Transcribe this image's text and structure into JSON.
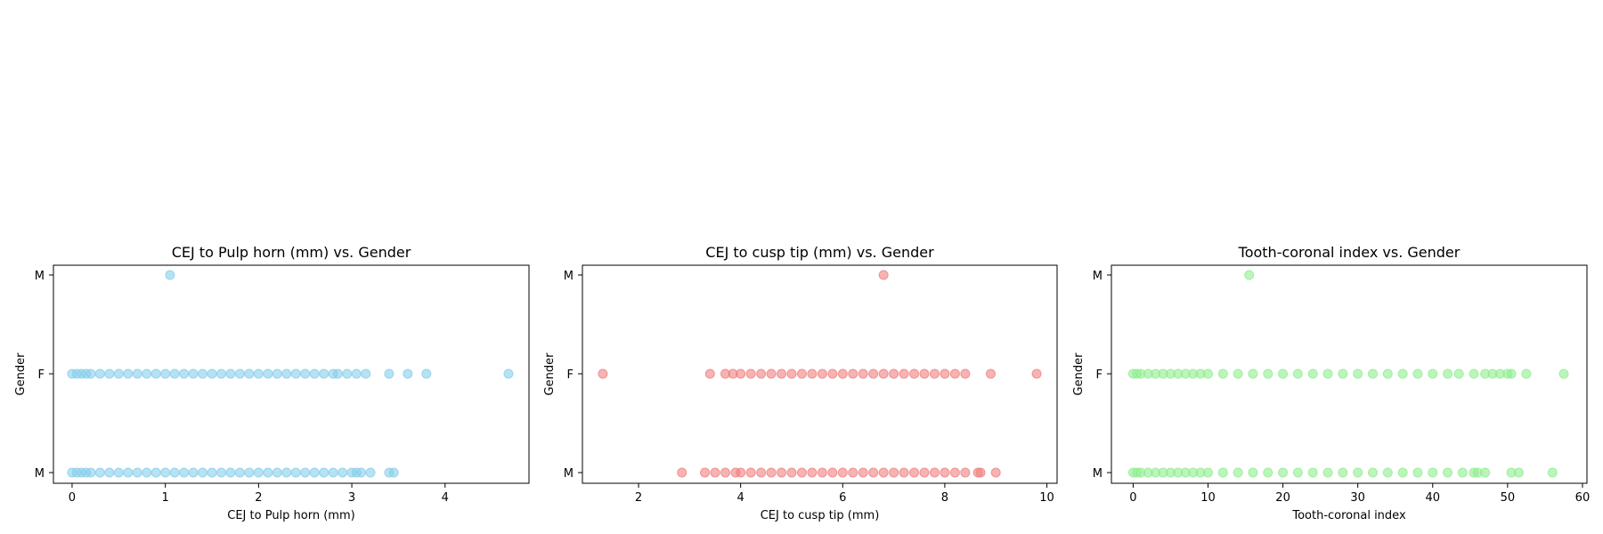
{
  "colors": {
    "panel_1": "#87CEEB",
    "panel_2": "#F08080",
    "panel_3": "#90EE90"
  },
  "chart_data": [
    {
      "type": "scatter",
      "title": "CEJ to Pulp horn (mm) vs. Gender",
      "xlabel": "CEJ to Pulp horn (mm)",
      "ylabel": "Gender",
      "y_categories": [
        "M",
        "F",
        "M"
      ],
      "xlim": [
        -0.2,
        4.9
      ],
      "x_ticks": [
        0,
        1,
        2,
        3,
        4
      ],
      "grid": false,
      "series": [
        {
          "category": "M",
          "category_index": 0,
          "x": [
            0.0,
            0.05,
            0.1,
            0.15,
            0.2,
            0.3,
            0.4,
            0.5,
            0.6,
            0.7,
            0.8,
            0.9,
            1.0,
            1.1,
            1.2,
            1.3,
            1.4,
            1.5,
            1.6,
            1.7,
            1.8,
            1.9,
            2.0,
            2.1,
            2.2,
            2.3,
            2.4,
            2.5,
            2.6,
            2.7,
            2.8,
            2.9,
            3.0,
            3.05,
            3.1,
            3.2,
            3.4,
            3.45
          ]
        },
        {
          "category": "F",
          "category_index": 1,
          "x": [
            0.0,
            0.05,
            0.1,
            0.15,
            0.2,
            0.3,
            0.4,
            0.5,
            0.6,
            0.7,
            0.8,
            0.9,
            1.0,
            1.1,
            1.2,
            1.3,
            1.4,
            1.5,
            1.6,
            1.7,
            1.8,
            1.9,
            2.0,
            2.1,
            2.2,
            2.3,
            2.4,
            2.5,
            2.6,
            2.7,
            2.8,
            2.85,
            2.95,
            3.05,
            3.15,
            3.4,
            3.6,
            3.8,
            4.68
          ]
        },
        {
          "category": "M",
          "category_index": 2,
          "x": [
            1.05
          ]
        }
      ]
    },
    {
      "type": "scatter",
      "title": "CEJ to cusp tip (mm) vs. Gender",
      "xlabel": "CEJ to cusp tip (mm)",
      "ylabel": "Gender",
      "y_categories": [
        "M",
        "F",
        "M"
      ],
      "xlim": [
        0.9,
        10.2
      ],
      "x_ticks": [
        2,
        4,
        6,
        8,
        10
      ],
      "grid": false,
      "series": [
        {
          "category": "M",
          "category_index": 0,
          "x": [
            2.85,
            3.3,
            3.5,
            3.7,
            3.9,
            4.0,
            4.2,
            4.4,
            4.6,
            4.8,
            5.0,
            5.2,
            5.4,
            5.6,
            5.8,
            6.0,
            6.2,
            6.4,
            6.6,
            6.8,
            7.0,
            7.2,
            7.4,
            7.6,
            7.8,
            8.0,
            8.2,
            8.4,
            8.65,
            8.7,
            9.0
          ]
        },
        {
          "category": "F",
          "category_index": 1,
          "x": [
            1.3,
            3.4,
            3.7,
            3.85,
            4.0,
            4.2,
            4.4,
            4.6,
            4.8,
            5.0,
            5.2,
            5.4,
            5.6,
            5.8,
            6.0,
            6.2,
            6.4,
            6.6,
            6.8,
            7.0,
            7.2,
            7.4,
            7.6,
            7.8,
            8.0,
            8.2,
            8.4,
            8.9,
            9.8
          ]
        },
        {
          "category": "M",
          "category_index": 2,
          "x": [
            6.8
          ]
        }
      ]
    },
    {
      "type": "scatter",
      "title": "Tooth-coronal index vs. Gender",
      "xlabel": "Tooth-coronal index",
      "ylabel": "Gender",
      "y_categories": [
        "M",
        "F",
        "M"
      ],
      "xlim": [
        -2.9,
        60.6
      ],
      "x_ticks": [
        0,
        10,
        20,
        30,
        40,
        50,
        60
      ],
      "grid": false,
      "series": [
        {
          "category": "M",
          "category_index": 0,
          "x": [
            0.0,
            0.5,
            1,
            2,
            3,
            4,
            5,
            6,
            7,
            8,
            9,
            10,
            12,
            14,
            16,
            18,
            20,
            22,
            24,
            26,
            28,
            30,
            32,
            34,
            36,
            38,
            40,
            42,
            44,
            45.5,
            46,
            47,
            50.5,
            51.5,
            56
          ]
        },
        {
          "category": "F",
          "category_index": 1,
          "x": [
            0.0,
            0.5,
            1,
            2,
            3,
            4,
            5,
            6,
            7,
            8,
            9,
            10,
            12,
            14,
            16,
            18,
            20,
            22,
            24,
            26,
            28,
            30,
            32,
            34,
            36,
            38,
            40,
            42,
            43.5,
            45.5,
            47,
            48,
            49,
            50,
            50.5,
            52.5,
            57.5
          ]
        },
        {
          "category": "M",
          "category_index": 2,
          "x": [
            15.5
          ]
        }
      ]
    }
  ]
}
